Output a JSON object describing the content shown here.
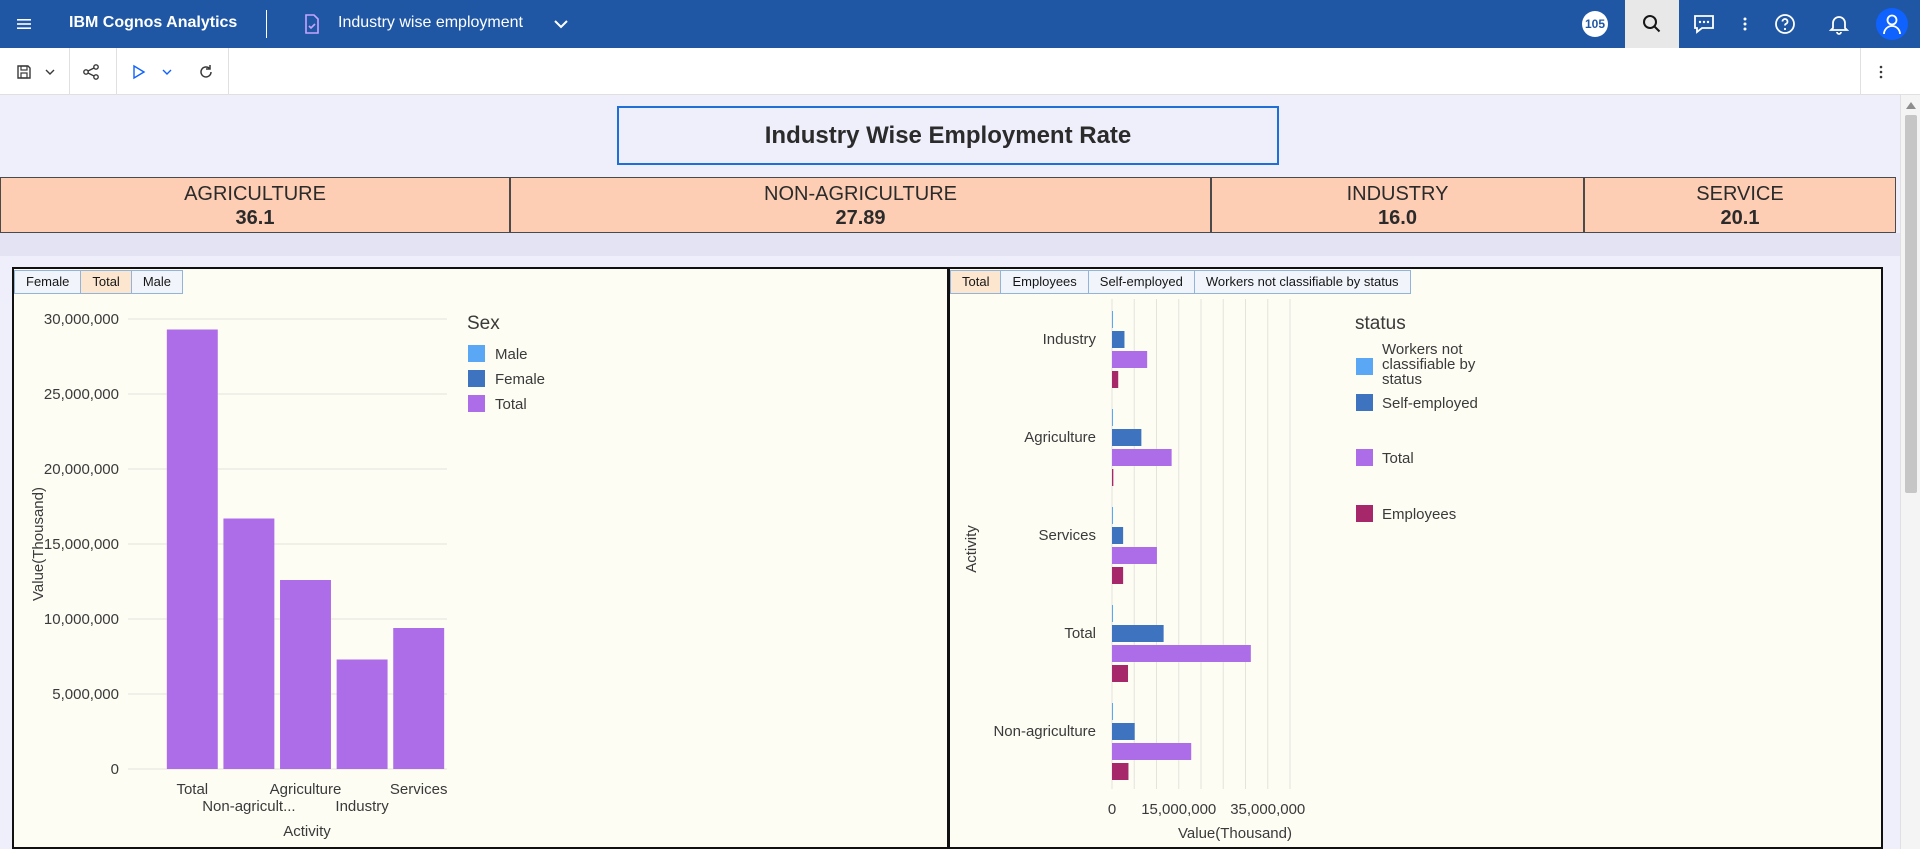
{
  "header": {
    "brand": "IBM Cognos Analytics",
    "doc_title": "Industry wise employment",
    "badge": "105",
    "icons": [
      "menu-icon",
      "document-icon",
      "chevron-down-icon",
      "search-icon",
      "chat-icon",
      "more-vertical-icon",
      "help-icon",
      "notification-icon",
      "user-icon"
    ]
  },
  "toolbar": {
    "icons": [
      "save-icon",
      "chevron-down-icon",
      "share-icon",
      "play-icon",
      "chevron-down-icon",
      "refresh-icon",
      "more-vertical-icon"
    ]
  },
  "report": {
    "title": "Industry Wise Employment Rate",
    "kpis": [
      {
        "label": "AGRICULTURE",
        "value": "36.1"
      },
      {
        "label": "NON-AGRICULTURE",
        "value": "27.89"
      },
      {
        "label": "INDUSTRY",
        "value": "16.0"
      },
      {
        "label": "SERVICE",
        "value": "20.1"
      }
    ]
  },
  "left_panel": {
    "tabs": [
      "Female",
      "Total",
      "Male"
    ],
    "active_tab": "Total"
  },
  "right_panel": {
    "tabs": [
      "Total",
      "Employees",
      "Self-employed",
      "Workers not classifiable by status"
    ],
    "active_tab": "Total"
  },
  "colors": {
    "male": "#5aa8f5",
    "female": "#3e73c0",
    "total": "#ae6de8",
    "employees": "#a7286a",
    "header": "#1f57a4",
    "kpi_bg": "#fdcdb4"
  },
  "chart_data": [
    {
      "type": "bar",
      "categories": [
        "Total",
        "Non-agricult...",
        "Agriculture",
        "Industry",
        "Services"
      ],
      "series": [
        {
          "name": "Total",
          "values": [
            29300000,
            16700000,
            12600000,
            7300000,
            9400000
          ]
        }
      ],
      "legend_title": "Sex",
      "legend": [
        "Male",
        "Female",
        "Total"
      ],
      "xlabel": "Activity",
      "ylabel": "Value(Thousand)",
      "yticks": [
        "30,000,000",
        "25,000,000",
        "20,000,000",
        "15,000,000",
        "10,000,000",
        "5,000,000",
        "0"
      ],
      "ylim": [
        0,
        30000000
      ],
      "legend_position": "right",
      "grid": true
    },
    {
      "type": "bar",
      "orientation": "horizontal",
      "categories": [
        "Industry",
        "Agriculture",
        "Services",
        "Total",
        "Non-agriculture"
      ],
      "series": [
        {
          "name": "Workers not classifiable by status",
          "values": [
            100000,
            100000,
            100000,
            200000,
            200000
          ]
        },
        {
          "name": "Self-employed",
          "values": [
            2800000,
            6600000,
            2500000,
            11600000,
            5100000
          ]
        },
        {
          "name": "Total",
          "values": [
            7900000,
            13400000,
            10100000,
            31200000,
            17800000
          ]
        },
        {
          "name": "Employees",
          "values": [
            1400000,
            300000,
            2500000,
            3600000,
            3700000
          ]
        }
      ],
      "legend_title": "status",
      "legend": [
        "Workers not classifiable by status",
        "Self-employed",
        "Total",
        "Employees"
      ],
      "xlabel": "Value(Thousand)",
      "ylabel": "Activity",
      "xticks": [
        "0",
        "15,000,000",
        "35,000,000"
      ],
      "xlim": [
        0,
        40000000
      ],
      "legend_position": "right",
      "grid": true
    }
  ]
}
